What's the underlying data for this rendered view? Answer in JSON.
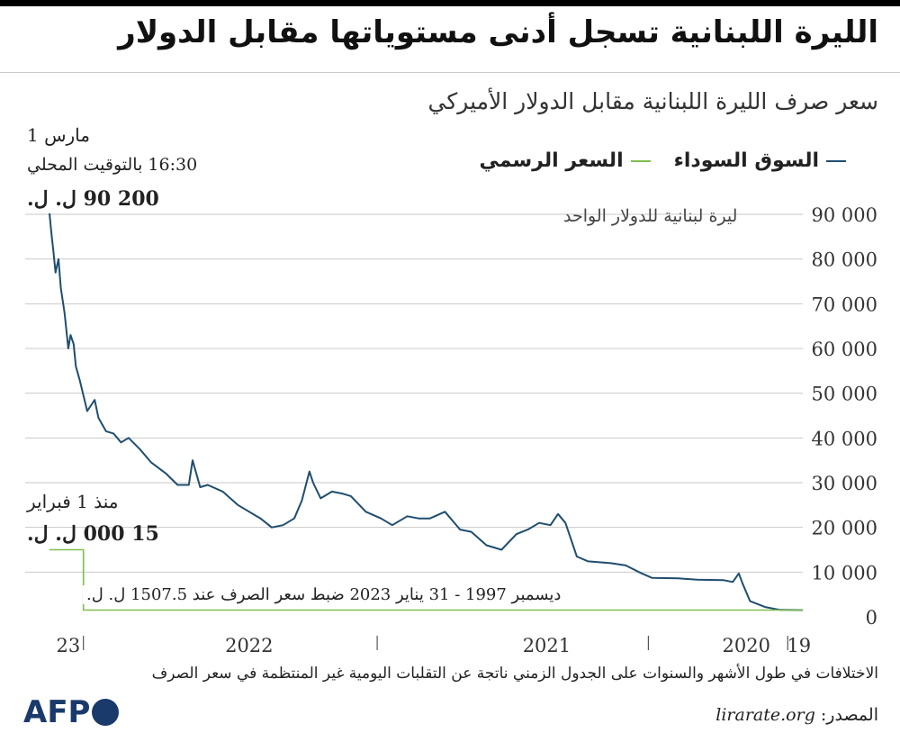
{
  "header": {
    "title": "الليرة اللبنانية تسجل أدنى مستوياتها مقابل الدولار",
    "subtitle": "سعر صرف الليرة اللبنانية مقابل الدولار الأميركي"
  },
  "legend": {
    "black_market": "السوق السوداء",
    "official": "السعر الرسمي"
  },
  "colors": {
    "black_market": "#1f4e6e",
    "official": "#7fbf4d",
    "grid": "#c9c9c9",
    "logo": "#1a3a6b"
  },
  "annotations": {
    "latest_date": "1 مارس",
    "latest_time": "16:30 بالتوقيت المحلي",
    "latest_value": "200 90 ل. ل.",
    "official_since": "منذ 1 فبراير",
    "official_value": "15 000 ل. ل.",
    "peg_note": "ديسمبر 1997 - 31 يناير 2023 ضبط سعر الصرف عند 1507.5 ل. ل."
  },
  "footer": {
    "footnote": "الاختلافات في طول الأشهر والسنوات على الجدول الزمني ناتجة عن التقلبات اليومية غير المنتظمة في سعر الصرف",
    "source_label": "المصدر:",
    "source_value": "lirarate.org",
    "logo_text": "AFP"
  },
  "chart_data": {
    "type": "line",
    "title": "سعر صرف الليرة اللبنانية مقابل الدولار الأميركي",
    "ylabel": "ليرة لبنانية للدولار الواحد",
    "ylim": [
      0,
      90000
    ],
    "yticks": [
      0,
      10000,
      20000,
      30000,
      40000,
      50000,
      60000,
      70000,
      80000,
      90000
    ],
    "ytick_labels": [
      "0",
      "10 000",
      "20 000",
      "30 000",
      "40 000",
      "50 000",
      "60 000",
      "70 000",
      "80 000",
      "90 000"
    ],
    "x_direction": "right-to-left (time runs right to left)",
    "xticks": [
      {
        "label": "19",
        "t": 0.005
      },
      {
        "label": "2020",
        "t": 0.075
      },
      {
        "label": "2021",
        "t": 0.34
      },
      {
        "label": "2022",
        "t": 0.735
      },
      {
        "label": "23",
        "t": 0.975
      }
    ],
    "x_separators": [
      0.02,
      0.205,
      0.565,
      0.955
    ],
    "series": [
      {
        "name": "السوق السوداء",
        "color": "#1f4e6e",
        "points": [
          [
            0.0,
            1510
          ],
          [
            0.03,
            1550
          ],
          [
            0.05,
            2200
          ],
          [
            0.07,
            3500
          ],
          [
            0.08,
            7500
          ],
          [
            0.085,
            9700
          ],
          [
            0.093,
            7800
          ],
          [
            0.105,
            8200
          ],
          [
            0.14,
            8300
          ],
          [
            0.165,
            8600
          ],
          [
            0.2,
            8700
          ],
          [
            0.215,
            9800
          ],
          [
            0.235,
            11500
          ],
          [
            0.255,
            12000
          ],
          [
            0.285,
            12400
          ],
          [
            0.3,
            13500
          ],
          [
            0.315,
            21000
          ],
          [
            0.325,
            23000
          ],
          [
            0.335,
            20500
          ],
          [
            0.35,
            21000
          ],
          [
            0.365,
            19500
          ],
          [
            0.38,
            18500
          ],
          [
            0.4,
            15000
          ],
          [
            0.42,
            16000
          ],
          [
            0.44,
            19000
          ],
          [
            0.455,
            19500
          ],
          [
            0.475,
            23500
          ],
          [
            0.495,
            22000
          ],
          [
            0.51,
            22000
          ],
          [
            0.525,
            22500
          ],
          [
            0.545,
            20500
          ],
          [
            0.56,
            22000
          ],
          [
            0.58,
            23500
          ],
          [
            0.6,
            27000
          ],
          [
            0.61,
            27500
          ],
          [
            0.625,
            28000
          ],
          [
            0.64,
            26500
          ],
          [
            0.65,
            30000
          ],
          [
            0.655,
            32500
          ],
          [
            0.665,
            26000
          ],
          [
            0.675,
            22000
          ],
          [
            0.69,
            20500
          ],
          [
            0.705,
            20000
          ],
          [
            0.72,
            22000
          ],
          [
            0.73,
            23000
          ],
          [
            0.75,
            25000
          ],
          [
            0.77,
            28000
          ],
          [
            0.79,
            29500
          ],
          [
            0.8,
            29000
          ],
          [
            0.81,
            35000
          ],
          [
            0.815,
            29500
          ],
          [
            0.83,
            29500
          ],
          [
            0.845,
            32000
          ],
          [
            0.865,
            34500
          ],
          [
            0.88,
            37500
          ],
          [
            0.895,
            40000
          ],
          [
            0.905,
            39000
          ],
          [
            0.915,
            41000
          ],
          [
            0.925,
            41500
          ],
          [
            0.935,
            44500
          ],
          [
            0.94,
            48500
          ],
          [
            0.95,
            46000
          ],
          [
            0.96,
            53000
          ],
          [
            0.965,
            56000
          ],
          [
            0.968,
            61000
          ],
          [
            0.972,
            63000
          ],
          [
            0.975,
            60000
          ],
          [
            0.98,
            68000
          ],
          [
            0.985,
            73500
          ],
          [
            0.988,
            80000
          ],
          [
            0.992,
            77000
          ],
          [
            0.995,
            82000
          ],
          [
            0.997,
            85000
          ],
          [
            1.0,
            90200
          ]
        ]
      },
      {
        "name": "السعر الرسمي",
        "color": "#7fbf4d",
        "points": [
          [
            0.0,
            1507.5
          ],
          [
            0.955,
            1507.5
          ],
          [
            0.955,
            15000
          ],
          [
            1.0,
            15000
          ]
        ]
      }
    ]
  }
}
